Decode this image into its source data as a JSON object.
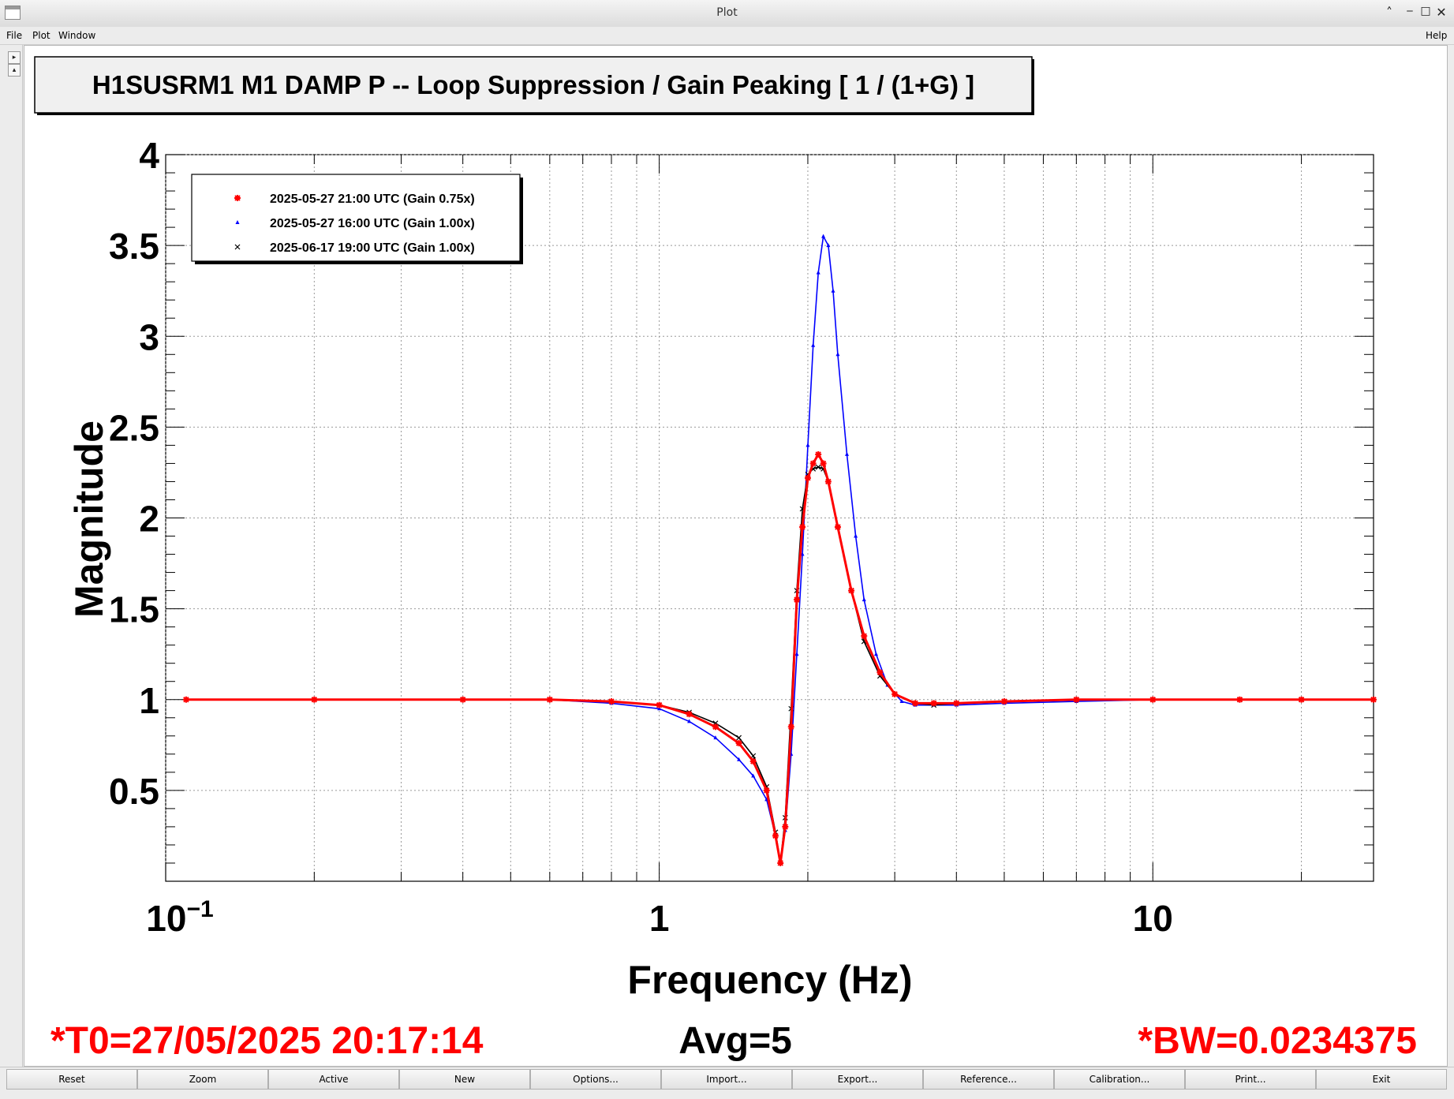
{
  "window": {
    "title": "Plot"
  },
  "menu": {
    "file": "File",
    "plot": "Plot",
    "window": "Window",
    "help": "Help"
  },
  "footer": {
    "t0": "*T0=27/05/2025 20:17:14",
    "avg": "Avg=5",
    "bw": "*BW=0.0234375"
  },
  "toolbar": [
    "Reset",
    "Zoom",
    "Active",
    "New",
    "Options...",
    "Import...",
    "Export...",
    "Reference...",
    "Calibration...",
    "Print...",
    "Exit"
  ],
  "colors": {
    "series1": "#ff0000",
    "series2": "#0000ff",
    "series3": "#000000",
    "footer": "#ff0000"
  },
  "icons": {
    "minimize": "chevron-up-icon",
    "maximize": "square-icon",
    "close": "close-icon",
    "scroll_left": "triangle-right-icon",
    "scroll_up": "triangle-up-icon"
  },
  "chart_data": {
    "type": "line",
    "title": "H1SUSRM1 M1 DAMP P -- Loop Suppression / Gain Peaking [ 1 / (1+G) ]",
    "xlabel": "Frequency (Hz)",
    "ylabel": "Magnitude",
    "xscale": "log",
    "xlim": [
      0.1,
      28
    ],
    "ylim": [
      0,
      4
    ],
    "grid": true,
    "legend_position": "top-left",
    "x_ticks": [
      {
        "value": 0.1,
        "base": "10",
        "exp": "−1"
      },
      {
        "value": 1,
        "base": "1",
        "exp": ""
      },
      {
        "value": 10,
        "base": "10",
        "exp": ""
      }
    ],
    "y_ticks": [
      "0.5",
      "1",
      "1.5",
      "2",
      "2.5",
      "3",
      "3.5",
      "4"
    ],
    "series": [
      {
        "name": "2025-05-27 21:00 UTC (Gain 0.75x)",
        "color": "#ff0000",
        "marker": "star",
        "x": [
          0.11,
          0.2,
          0.4,
          0.6,
          0.8,
          1.0,
          1.15,
          1.3,
          1.45,
          1.55,
          1.65,
          1.72,
          1.76,
          1.8,
          1.85,
          1.9,
          1.95,
          2.0,
          2.05,
          2.1,
          2.15,
          2.2,
          2.3,
          2.45,
          2.6,
          2.8,
          3.0,
          3.3,
          3.6,
          4.0,
          5.0,
          7.0,
          10.0,
          15.0,
          20.0,
          28.0
        ],
        "y": [
          1.0,
          1.0,
          1.0,
          1.0,
          0.99,
          0.97,
          0.92,
          0.85,
          0.76,
          0.66,
          0.5,
          0.25,
          0.1,
          0.3,
          0.85,
          1.55,
          1.95,
          2.22,
          2.3,
          2.35,
          2.3,
          2.2,
          1.95,
          1.6,
          1.35,
          1.15,
          1.03,
          0.98,
          0.98,
          0.98,
          0.99,
          1.0,
          1.0,
          1.0,
          1.0,
          1.0
        ]
      },
      {
        "name": "2025-05-27 16:00 UTC (Gain 1.00x)",
        "color": "#0000ff",
        "marker": "triangle",
        "x": [
          0.6,
          0.8,
          1.0,
          1.15,
          1.3,
          1.45,
          1.55,
          1.65,
          1.72,
          1.76,
          1.8,
          1.85,
          1.9,
          1.95,
          2.0,
          2.05,
          2.1,
          2.15,
          2.2,
          2.25,
          2.3,
          2.4,
          2.5,
          2.6,
          2.75,
          2.9,
          3.1,
          3.3,
          3.6,
          4.0,
          5.0,
          7.0,
          10.0,
          15.0,
          20.0,
          28.0
        ],
        "y": [
          1.0,
          0.98,
          0.95,
          0.88,
          0.79,
          0.67,
          0.58,
          0.45,
          0.25,
          0.1,
          0.28,
          0.7,
          1.25,
          1.8,
          2.4,
          2.95,
          3.35,
          3.55,
          3.5,
          3.25,
          2.9,
          2.35,
          1.9,
          1.55,
          1.25,
          1.08,
          0.99,
          0.97,
          0.97,
          0.97,
          0.98,
          0.99,
          1.0,
          1.0,
          1.0,
          1.0
        ]
      },
      {
        "name": "2025-06-17 19:00 UTC (Gain 1.00x)",
        "color": "#000000",
        "marker": "x",
        "x": [
          0.6,
          0.8,
          1.0,
          1.15,
          1.3,
          1.45,
          1.55,
          1.65,
          1.72,
          1.76,
          1.8,
          1.85,
          1.9,
          1.95,
          2.0,
          2.05,
          2.1,
          2.15,
          2.2,
          2.3,
          2.45,
          2.6,
          2.8,
          3.0,
          3.3,
          3.6,
          4.0,
          5.0,
          7.0,
          10.0,
          15.0,
          20.0,
          28.0
        ],
        "y": [
          1.0,
          0.99,
          0.97,
          0.93,
          0.87,
          0.79,
          0.69,
          0.52,
          0.27,
          0.1,
          0.35,
          0.95,
          1.6,
          2.05,
          2.24,
          2.27,
          2.28,
          2.27,
          2.2,
          1.95,
          1.6,
          1.32,
          1.13,
          1.03,
          0.98,
          0.97,
          0.98,
          0.99,
          1.0,
          1.0,
          1.0,
          1.0,
          1.0
        ]
      }
    ]
  }
}
